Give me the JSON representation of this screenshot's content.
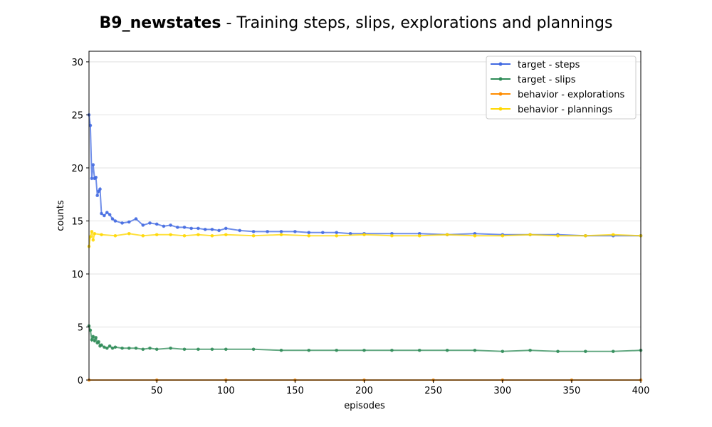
{
  "title": {
    "bold": "B9_newstates",
    "rest": " - Training steps, slips, explorations and plannings"
  },
  "chart_data": {
    "type": "line",
    "xlabel": "episodes",
    "ylabel": "counts",
    "xlim": [
      1,
      400
    ],
    "ylim": [
      0,
      31
    ],
    "xticks": [
      50,
      100,
      150,
      200,
      250,
      300,
      350,
      400
    ],
    "yticks": [
      0,
      5,
      10,
      15,
      20,
      25,
      30
    ],
    "grid": "horizontal",
    "legend_position": "top-right",
    "series": [
      {
        "name": "target - steps",
        "color": "#4169e1",
        "x": [
          1,
          2,
          3,
          4,
          5,
          6,
          7,
          8,
          9,
          10,
          12,
          14,
          16,
          18,
          20,
          25,
          30,
          35,
          40,
          45,
          50,
          55,
          60,
          65,
          70,
          75,
          80,
          85,
          90,
          95,
          100,
          110,
          120,
          130,
          140,
          150,
          160,
          170,
          180,
          190,
          200,
          220,
          240,
          260,
          280,
          300,
          320,
          340,
          360,
          380,
          400
        ],
        "values": [
          25.0,
          24.0,
          19.0,
          20.3,
          19.0,
          19.1,
          17.4,
          17.8,
          18.0,
          15.7,
          15.5,
          15.8,
          15.6,
          15.2,
          15.0,
          14.8,
          14.9,
          15.2,
          14.6,
          14.8,
          14.7,
          14.5,
          14.6,
          14.4,
          14.4,
          14.3,
          14.3,
          14.2,
          14.2,
          14.1,
          14.3,
          14.1,
          14.0,
          14.0,
          14.0,
          14.0,
          13.9,
          13.9,
          13.9,
          13.8,
          13.8,
          13.8,
          13.8,
          13.7,
          13.8,
          13.7,
          13.7,
          13.7,
          13.6,
          13.6,
          13.6
        ]
      },
      {
        "name": "target - slips",
        "color": "#2e8b57",
        "x": [
          1,
          2,
          3,
          4,
          5,
          6,
          7,
          8,
          9,
          10,
          12,
          14,
          16,
          18,
          20,
          25,
          30,
          35,
          40,
          45,
          50,
          60,
          70,
          80,
          90,
          100,
          120,
          140,
          160,
          180,
          200,
          220,
          240,
          260,
          280,
          300,
          320,
          340,
          360,
          380,
          400
        ],
        "values": [
          5.1,
          4.7,
          3.8,
          4.1,
          3.7,
          4.0,
          3.5,
          3.6,
          3.2,
          3.3,
          3.1,
          3.0,
          3.2,
          3.0,
          3.1,
          3.0,
          3.0,
          3.0,
          2.9,
          3.0,
          2.9,
          3.0,
          2.9,
          2.9,
          2.9,
          2.9,
          2.9,
          2.8,
          2.8,
          2.8,
          2.8,
          2.8,
          2.8,
          2.8,
          2.8,
          2.7,
          2.8,
          2.7,
          2.7,
          2.7,
          2.8
        ]
      },
      {
        "name": "behavior - explorations",
        "color": "#ff8c00",
        "x": [
          1,
          50,
          100,
          150,
          200,
          250,
          300,
          350,
          400
        ],
        "values": [
          0.0,
          0.0,
          0.0,
          0.0,
          0.0,
          0.0,
          0.0,
          0.0,
          0.0
        ]
      },
      {
        "name": "behavior - plannings",
        "color": "#ffd700",
        "x": [
          1,
          2,
          3,
          4,
          5,
          10,
          20,
          30,
          40,
          50,
          60,
          70,
          80,
          90,
          100,
          120,
          140,
          160,
          180,
          200,
          220,
          240,
          260,
          280,
          300,
          320,
          340,
          360,
          380,
          400
        ],
        "values": [
          12.6,
          13.5,
          14.0,
          13.2,
          13.8,
          13.7,
          13.6,
          13.8,
          13.6,
          13.7,
          13.7,
          13.6,
          13.7,
          13.6,
          13.7,
          13.6,
          13.7,
          13.6,
          13.6,
          13.7,
          13.6,
          13.6,
          13.7,
          13.6,
          13.6,
          13.7,
          13.6,
          13.6,
          13.7,
          13.6
        ]
      }
    ]
  }
}
